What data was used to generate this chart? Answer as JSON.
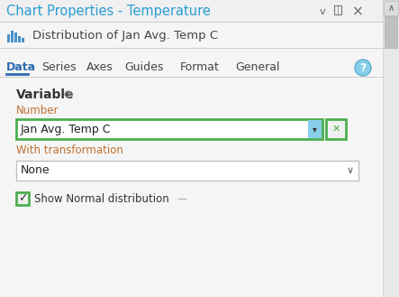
{
  "title": "Chart Properties - Temperature",
  "subtitle": "Distribution of Jan Avg. Temp C",
  "tab_items": [
    "Data",
    "Series",
    "Axes",
    "Guides",
    "Format",
    "General"
  ],
  "active_tab": "Data",
  "section_label": "Variable",
  "number_label": "Number",
  "dropdown_value": "Jan Avg. Temp C",
  "transformation_label": "With transformation",
  "transformation_value": "None",
  "checkbox_label": "Show Normal distribution",
  "title_color": "#2B9ED4",
  "subtitle_color": "#444444",
  "tab_color": "#444444",
  "active_tab_color": "#2B6CB0",
  "label_color": "#C07030",
  "variable_color": "#333333",
  "bg_color": "#F0F0F0",
  "panel_bg": "#F5F5F5",
  "white": "#FFFFFF",
  "green_border": "#4CAF50",
  "blue_btn_color": "#87CEEA",
  "scrollbar_bg": "#E8E8E8",
  "scrollbar_handle": "#C0C0C0",
  "border_light": "#CCCCCC",
  "gear_color": "#888888",
  "check_color": "#333333"
}
